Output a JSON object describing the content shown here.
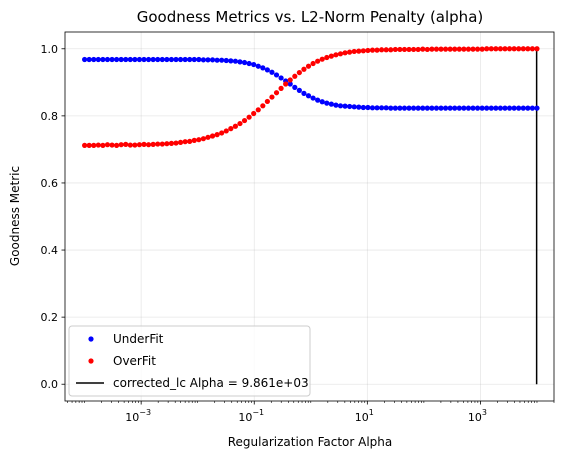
{
  "chart_data": {
    "type": "scatter",
    "title": "Goodness Metrics vs. L2-Norm Penalty (alpha)",
    "xlabel": "Regularization Factor Alpha",
    "ylabel": "Goodness Metric",
    "xscale": "log",
    "xlim": [
      4.5e-05,
      20000
    ],
    "ylim": [
      -0.05,
      1.05
    ],
    "grid": true,
    "legend_position": "lower-left",
    "x_ticks": [
      {
        "value": 0.001,
        "label": "10",
        "exp": "−3"
      },
      {
        "value": 0.1,
        "label": "10",
        "exp": "−1"
      },
      {
        "value": 10,
        "label": "10",
        "exp": "1"
      },
      {
        "value": 1000,
        "label": "10",
        "exp": "3"
      }
    ],
    "y_ticks": [
      {
        "value": 0.0,
        "label": "0.0"
      },
      {
        "value": 0.2,
        "label": "0.2"
      },
      {
        "value": 0.4,
        "label": "0.4"
      },
      {
        "value": 0.6,
        "label": "0.6"
      },
      {
        "value": 0.8,
        "label": "0.8"
      },
      {
        "value": 1.0,
        "label": "1.0"
      }
    ],
    "x_range": {
      "log10_start": -4.0,
      "log10_end": 4.0,
      "count": 100
    },
    "series": [
      {
        "name": "UnderFit",
        "color": "#0000ff",
        "marker": "dot",
        "values": [
          0.968,
          0.968,
          0.968,
          0.968,
          0.968,
          0.968,
          0.968,
          0.968,
          0.968,
          0.968,
          0.968,
          0.968,
          0.968,
          0.968,
          0.968,
          0.968,
          0.968,
          0.968,
          0.968,
          0.968,
          0.968,
          0.968,
          0.968,
          0.968,
          0.968,
          0.968,
          0.967,
          0.967,
          0.967,
          0.966,
          0.966,
          0.965,
          0.964,
          0.963,
          0.961,
          0.959,
          0.956,
          0.953,
          0.948,
          0.943,
          0.937,
          0.93,
          0.922,
          0.913,
          0.904,
          0.895,
          0.885,
          0.876,
          0.867,
          0.86,
          0.853,
          0.847,
          0.842,
          0.838,
          0.835,
          0.832,
          0.83,
          0.829,
          0.828,
          0.827,
          0.826,
          0.825,
          0.825,
          0.824,
          0.824,
          0.824,
          0.824,
          0.823,
          0.823,
          0.823,
          0.823,
          0.823,
          0.823,
          0.823,
          0.823,
          0.823,
          0.823,
          0.823,
          0.823,
          0.823,
          0.823,
          0.823,
          0.823,
          0.823,
          0.823,
          0.823,
          0.823,
          0.823,
          0.823,
          0.823,
          0.823,
          0.823,
          0.823,
          0.823,
          0.823,
          0.823,
          0.823,
          0.823,
          0.823,
          0.823
        ]
      },
      {
        "name": "OverFit",
        "color": "#ff0000",
        "marker": "dot",
        "values": [
          0.712,
          0.712,
          0.712,
          0.713,
          0.712,
          0.714,
          0.713,
          0.712,
          0.714,
          0.715,
          0.713,
          0.713,
          0.714,
          0.715,
          0.714,
          0.715,
          0.716,
          0.716,
          0.717,
          0.718,
          0.719,
          0.721,
          0.723,
          0.724,
          0.727,
          0.729,
          0.732,
          0.736,
          0.74,
          0.744,
          0.749,
          0.755,
          0.762,
          0.769,
          0.777,
          0.786,
          0.796,
          0.807,
          0.818,
          0.83,
          0.843,
          0.856,
          0.869,
          0.882,
          0.895,
          0.907,
          0.918,
          0.929,
          0.939,
          0.948,
          0.956,
          0.963,
          0.969,
          0.974,
          0.978,
          0.982,
          0.985,
          0.988,
          0.99,
          0.992,
          0.993,
          0.994,
          0.995,
          0.996,
          0.996,
          0.997,
          0.997,
          0.997,
          0.998,
          0.998,
          0.998,
          0.998,
          0.998,
          0.998,
          0.999,
          0.998,
          0.999,
          0.999,
          0.999,
          0.999,
          0.999,
          0.999,
          0.999,
          0.999,
          0.999,
          0.999,
          0.999,
          0.999,
          1.0,
          1.0,
          1.0,
          1.0,
          1.0,
          1.0,
          1.0,
          1.0,
          1.0,
          1.0,
          1.0,
          1.0
        ]
      }
    ],
    "vline": {
      "name": "corrected_lc Alpha = 9.861e+03",
      "x": 9861,
      "y0": 0.0,
      "y1": 1.0,
      "color": "#000000"
    }
  }
}
